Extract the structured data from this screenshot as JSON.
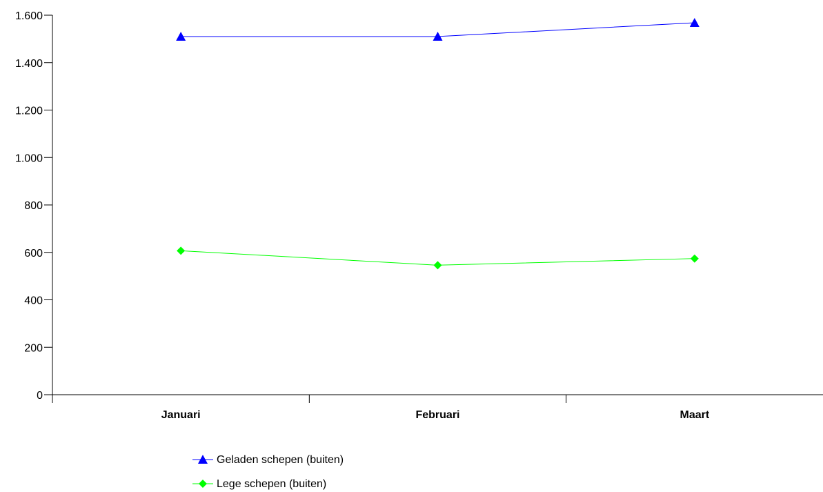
{
  "chart_data": {
    "type": "line",
    "categories": [
      "Januari",
      "Februari",
      "Maart"
    ],
    "series": [
      {
        "name": "Geladen schepen (buiten)",
        "values": [
          1510,
          1510,
          1568
        ],
        "color": "#0000ff",
        "marker": "triangle"
      },
      {
        "name": "Lege schepen (buiten)",
        "values": [
          607,
          546,
          574
        ],
        "color": "#00ff00",
        "marker": "diamond"
      }
    ],
    "ylim": [
      0,
      1600
    ],
    "yticks": [
      0,
      200,
      400,
      600,
      800,
      1000,
      1200,
      1400,
      1600
    ],
    "ytick_labels": [
      "0",
      "200",
      "400",
      "600",
      "800",
      "1.000",
      "1.200",
      "1.400",
      "1.600"
    ],
    "grid": false,
    "legend_position": "bottom"
  }
}
